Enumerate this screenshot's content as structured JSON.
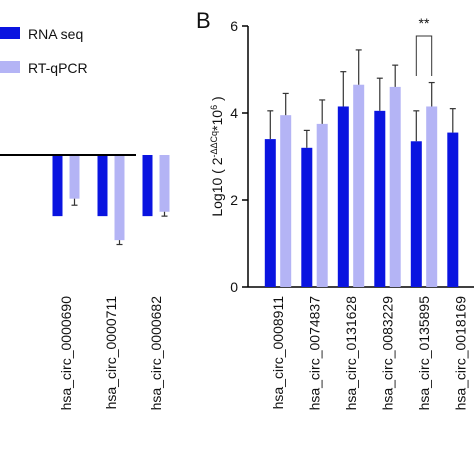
{
  "panel_label": "B",
  "chart_data": [
    {
      "type": "bar",
      "categories": [
        "hsa_circ_0000690",
        "hsa_circ_0000711",
        "hsa_circ_0000682"
      ],
      "series": [
        {
          "name": "RNA seq",
          "color": "#0a14e0",
          "values": [
            -1.4,
            -1.4,
            -1.4
          ]
        },
        {
          "name": "RT-qPCR",
          "color": "#b4b4f5",
          "values": [
            -1.0,
            -1.95,
            -1.3
          ],
          "errors": [
            0.15,
            0.1,
            0.1
          ]
        }
      ],
      "ylim": [
        -3,
        3
      ],
      "legend": "upper-right"
    },
    {
      "type": "bar",
      "ylabel_parts": [
        {
          "text": "Log10 ( 2"
        },
        {
          "text": "-ΔΔCq",
          "sup": true
        },
        {
          "text": "*10"
        },
        {
          "text": "6",
          "sup": true
        },
        {
          "text": " )"
        }
      ],
      "categories": [
        "hsa_circ_0008911",
        "hsa_circ_0074837",
        "hsa_circ_0131628",
        "hsa_circ_0083229",
        "hsa_circ_0135895",
        "hsa_circ_0018169"
      ],
      "series": [
        {
          "color": "#0a14e0",
          "values": [
            3.4,
            3.2,
            4.15,
            4.05,
            3.35,
            3.55
          ],
          "errors": [
            0.65,
            0.4,
            0.8,
            0.75,
            0.7,
            0.55
          ]
        },
        {
          "color": "#b4b4f5",
          "values": [
            3.95,
            3.75,
            4.65,
            4.6,
            4.15,
            null
          ],
          "errors": [
            0.5,
            0.55,
            0.8,
            0.5,
            0.55,
            null
          ]
        }
      ],
      "ylim": [
        0,
        6
      ],
      "yticks": [
        0,
        2,
        4,
        6
      ],
      "annotations": [
        {
          "text": "**",
          "category": 4
        }
      ]
    }
  ]
}
